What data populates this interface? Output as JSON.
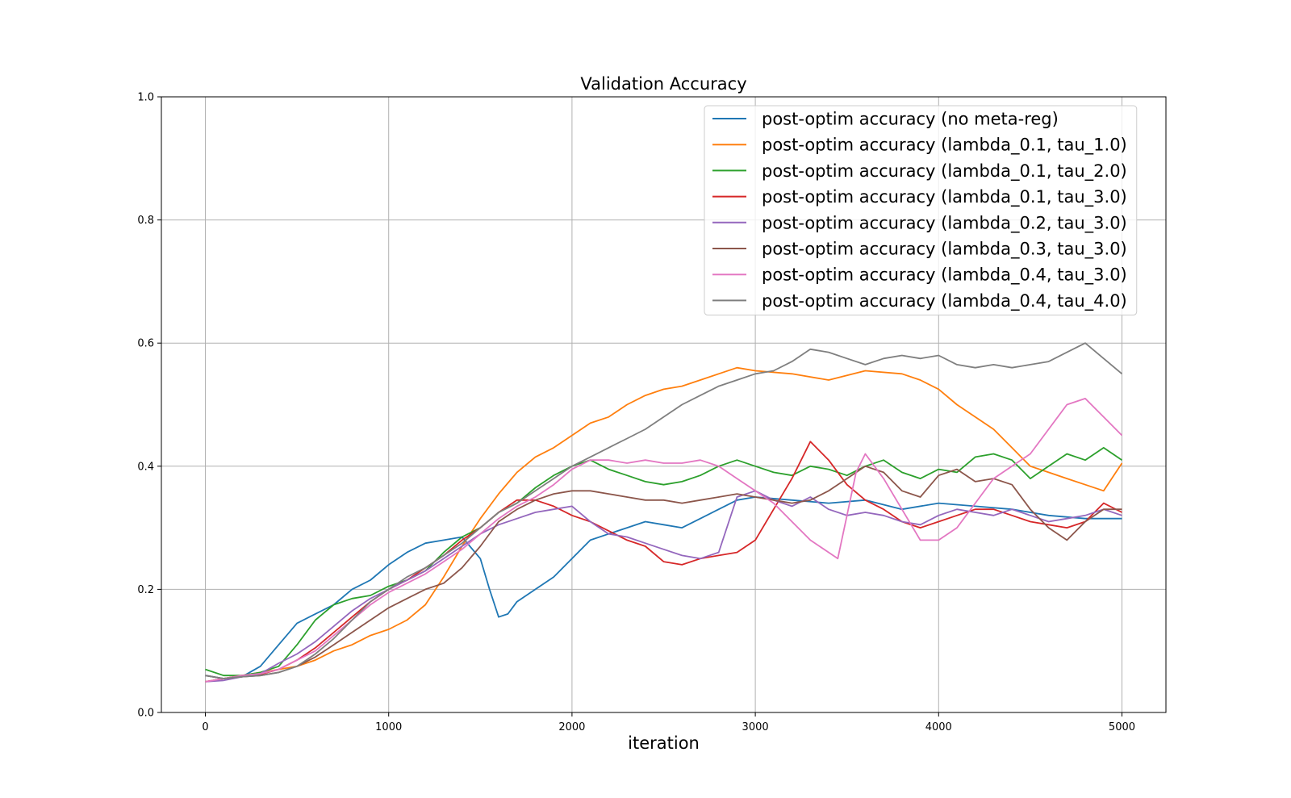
{
  "chart_data": {
    "type": "line",
    "title": "Validation Accuracy",
    "xlabel": "iteration",
    "ylabel": "",
    "xlim": [
      -240,
      5240
    ],
    "ylim": [
      0.0,
      1.0
    ],
    "xticks": [
      "0",
      "1000",
      "2000",
      "3000",
      "4000",
      "5000"
    ],
    "yticks": [
      "0.0",
      "0.2",
      "0.4",
      "0.6",
      "0.8",
      "1.0"
    ],
    "grid": true,
    "legend_position": "upper right",
    "series": [
      {
        "name": "post-optim accuracy (no meta-reg)",
        "color": "#1f77b4",
        "x": [
          0,
          100,
          200,
          300,
          400,
          500,
          600,
          700,
          800,
          900,
          1000,
          1100,
          1200,
          1300,
          1400,
          1500,
          1550,
          1600,
          1650,
          1700,
          1800,
          1900,
          2000,
          2100,
          2200,
          2300,
          2400,
          2500,
          2600,
          2700,
          2800,
          2900,
          3000,
          3200,
          3400,
          3600,
          3800,
          4000,
          4200,
          4400,
          4600,
          4800,
          5000
        ],
        "y": [
          0.06,
          0.055,
          0.058,
          0.075,
          0.11,
          0.145,
          0.16,
          0.175,
          0.2,
          0.215,
          0.24,
          0.26,
          0.275,
          0.28,
          0.285,
          0.25,
          0.2,
          0.155,
          0.16,
          0.18,
          0.2,
          0.22,
          0.25,
          0.28,
          0.29,
          0.3,
          0.31,
          0.305,
          0.3,
          0.315,
          0.33,
          0.345,
          0.35,
          0.345,
          0.34,
          0.345,
          0.33,
          0.34,
          0.335,
          0.33,
          0.32,
          0.315,
          0.315
        ]
      },
      {
        "name": "post-optim accuracy (lambda_0.1, tau_1.0)",
        "color": "#ff7f0e",
        "x": [
          0,
          100,
          200,
          300,
          400,
          500,
          600,
          700,
          800,
          900,
          1000,
          1100,
          1200,
          1300,
          1400,
          1500,
          1600,
          1700,
          1800,
          1900,
          2000,
          2100,
          2200,
          2300,
          2400,
          2500,
          2600,
          2700,
          2800,
          2900,
          3000,
          3200,
          3400,
          3600,
          3800,
          3900,
          4000,
          4100,
          4200,
          4300,
          4400,
          4500,
          4600,
          4700,
          4800,
          4900,
          5000
        ],
        "y": [
          0.05,
          0.055,
          0.06,
          0.065,
          0.07,
          0.075,
          0.085,
          0.1,
          0.11,
          0.125,
          0.135,
          0.15,
          0.175,
          0.22,
          0.27,
          0.315,
          0.355,
          0.39,
          0.415,
          0.43,
          0.45,
          0.47,
          0.48,
          0.5,
          0.515,
          0.525,
          0.53,
          0.54,
          0.55,
          0.56,
          0.555,
          0.55,
          0.54,
          0.555,
          0.55,
          0.54,
          0.525,
          0.5,
          0.48,
          0.46,
          0.43,
          0.4,
          0.39,
          0.38,
          0.37,
          0.36,
          0.405
        ]
      },
      {
        "name": "post-optim accuracy (lambda_0.1, tau_2.0)",
        "color": "#2ca02c",
        "x": [
          0,
          100,
          200,
          300,
          400,
          500,
          600,
          700,
          800,
          900,
          1000,
          1100,
          1200,
          1300,
          1400,
          1500,
          1600,
          1700,
          1800,
          1900,
          2000,
          2100,
          2200,
          2300,
          2400,
          2500,
          2600,
          2700,
          2800,
          2900,
          3000,
          3100,
          3200,
          3300,
          3400,
          3500,
          3600,
          3700,
          3800,
          3900,
          4000,
          4100,
          4200,
          4300,
          4400,
          4500,
          4600,
          4700,
          4800,
          4900,
          5000
        ],
        "y": [
          0.07,
          0.06,
          0.06,
          0.065,
          0.075,
          0.11,
          0.15,
          0.175,
          0.185,
          0.19,
          0.205,
          0.215,
          0.23,
          0.26,
          0.285,
          0.3,
          0.325,
          0.34,
          0.365,
          0.385,
          0.4,
          0.41,
          0.395,
          0.385,
          0.375,
          0.37,
          0.375,
          0.385,
          0.4,
          0.41,
          0.4,
          0.39,
          0.385,
          0.4,
          0.395,
          0.385,
          0.4,
          0.41,
          0.39,
          0.38,
          0.395,
          0.39,
          0.415,
          0.42,
          0.41,
          0.38,
          0.4,
          0.42,
          0.41,
          0.43,
          0.41
        ]
      },
      {
        "name": "post-optim accuracy (lambda_0.1, tau_3.0)",
        "color": "#d62728",
        "x": [
          0,
          100,
          200,
          300,
          400,
          500,
          600,
          700,
          800,
          900,
          1000,
          1100,
          1200,
          1300,
          1400,
          1500,
          1600,
          1700,
          1800,
          1900,
          2000,
          2100,
          2200,
          2300,
          2400,
          2500,
          2600,
          2700,
          2800,
          2900,
          3000,
          3100,
          3200,
          3300,
          3400,
          3500,
          3600,
          3700,
          3800,
          3900,
          4000,
          4100,
          4200,
          4300,
          4400,
          4500,
          4600,
          4700,
          4800,
          4900,
          5000
        ],
        "y": [
          0.05,
          0.055,
          0.06,
          0.062,
          0.07,
          0.085,
          0.105,
          0.13,
          0.155,
          0.18,
          0.2,
          0.215,
          0.235,
          0.255,
          0.28,
          0.3,
          0.325,
          0.345,
          0.345,
          0.335,
          0.32,
          0.31,
          0.295,
          0.28,
          0.27,
          0.245,
          0.24,
          0.25,
          0.255,
          0.26,
          0.28,
          0.33,
          0.38,
          0.44,
          0.41,
          0.37,
          0.345,
          0.33,
          0.31,
          0.3,
          0.31,
          0.32,
          0.33,
          0.33,
          0.32,
          0.31,
          0.305,
          0.3,
          0.31,
          0.34,
          0.325
        ]
      },
      {
        "name": "post-optim accuracy (lambda_0.2, tau_3.0)",
        "color": "#9467bd",
        "x": [
          0,
          100,
          200,
          300,
          400,
          500,
          600,
          700,
          800,
          900,
          1000,
          1100,
          1200,
          1300,
          1400,
          1500,
          1600,
          1700,
          1800,
          1900,
          2000,
          2100,
          2200,
          2300,
          2400,
          2500,
          2600,
          2700,
          2800,
          2900,
          3000,
          3100,
          3200,
          3300,
          3400,
          3500,
          3600,
          3700,
          3800,
          3900,
          4000,
          4100,
          4200,
          4300,
          4400,
          4500,
          4600,
          4700,
          4800,
          4900,
          5000
        ],
        "y": [
          0.05,
          0.052,
          0.058,
          0.063,
          0.08,
          0.095,
          0.115,
          0.14,
          0.165,
          0.185,
          0.2,
          0.215,
          0.23,
          0.25,
          0.27,
          0.29,
          0.305,
          0.315,
          0.325,
          0.33,
          0.335,
          0.31,
          0.29,
          0.285,
          0.275,
          0.265,
          0.255,
          0.25,
          0.26,
          0.35,
          0.36,
          0.345,
          0.335,
          0.35,
          0.33,
          0.32,
          0.325,
          0.32,
          0.31,
          0.305,
          0.32,
          0.33,
          0.325,
          0.32,
          0.33,
          0.32,
          0.31,
          0.315,
          0.32,
          0.33,
          0.32
        ]
      },
      {
        "name": "post-optim accuracy (lambda_0.3, tau_3.0)",
        "color": "#8c564b",
        "x": [
          0,
          100,
          200,
          300,
          400,
          500,
          600,
          700,
          800,
          900,
          1000,
          1100,
          1200,
          1300,
          1400,
          1500,
          1600,
          1700,
          1800,
          1900,
          2000,
          2100,
          2200,
          2300,
          2400,
          2500,
          2600,
          2700,
          2800,
          2900,
          3000,
          3100,
          3200,
          3300,
          3400,
          3500,
          3600,
          3700,
          3800,
          3900,
          4000,
          4100,
          4200,
          4300,
          4400,
          4500,
          4600,
          4700,
          4800,
          4900,
          5000
        ],
        "y": [
          0.06,
          0.055,
          0.058,
          0.06,
          0.065,
          0.075,
          0.09,
          0.11,
          0.13,
          0.15,
          0.17,
          0.185,
          0.2,
          0.21,
          0.235,
          0.27,
          0.31,
          0.33,
          0.345,
          0.355,
          0.36,
          0.36,
          0.355,
          0.35,
          0.345,
          0.345,
          0.34,
          0.345,
          0.35,
          0.355,
          0.35,
          0.345,
          0.34,
          0.345,
          0.36,
          0.38,
          0.4,
          0.39,
          0.36,
          0.35,
          0.385,
          0.395,
          0.375,
          0.38,
          0.37,
          0.33,
          0.3,
          0.28,
          0.31,
          0.33,
          0.33
        ]
      },
      {
        "name": "post-optim accuracy (lambda_0.4, tau_3.0)",
        "color": "#e377c2",
        "x": [
          0,
          100,
          200,
          300,
          400,
          500,
          600,
          700,
          800,
          900,
          1000,
          1100,
          1200,
          1300,
          1400,
          1500,
          1600,
          1700,
          1800,
          1900,
          2000,
          2100,
          2200,
          2300,
          2400,
          2500,
          2600,
          2700,
          2800,
          2900,
          3000,
          3100,
          3200,
          3300,
          3400,
          3450,
          3500,
          3550,
          3600,
          3700,
          3800,
          3900,
          4000,
          4100,
          4200,
          4300,
          4400,
          4500,
          4600,
          4700,
          4800,
          4900,
          5000
        ],
        "y": [
          0.05,
          0.055,
          0.06,
          0.063,
          0.07,
          0.085,
          0.1,
          0.125,
          0.15,
          0.175,
          0.195,
          0.21,
          0.225,
          0.245,
          0.265,
          0.29,
          0.315,
          0.335,
          0.35,
          0.37,
          0.395,
          0.41,
          0.41,
          0.405,
          0.41,
          0.405,
          0.405,
          0.41,
          0.4,
          0.38,
          0.36,
          0.34,
          0.31,
          0.28,
          0.26,
          0.25,
          0.32,
          0.39,
          0.42,
          0.38,
          0.33,
          0.28,
          0.28,
          0.3,
          0.34,
          0.38,
          0.4,
          0.42,
          0.46,
          0.5,
          0.51,
          0.48,
          0.45
        ]
      },
      {
        "name": "post-optim accuracy (lambda_0.4, tau_4.0)",
        "color": "#7f7f7f",
        "x": [
          0,
          100,
          200,
          300,
          400,
          500,
          600,
          700,
          800,
          900,
          1000,
          1100,
          1200,
          1300,
          1400,
          1500,
          1600,
          1700,
          1800,
          1900,
          2000,
          2100,
          2200,
          2300,
          2400,
          2500,
          2600,
          2700,
          2800,
          2900,
          3000,
          3100,
          3200,
          3300,
          3400,
          3500,
          3600,
          3700,
          3800,
          3900,
          4000,
          4100,
          4200,
          4300,
          4400,
          4500,
          4600,
          4700,
          4800,
          4900,
          5000
        ],
        "y": [
          0.06,
          0.055,
          0.058,
          0.06,
          0.065,
          0.075,
          0.095,
          0.12,
          0.15,
          0.18,
          0.2,
          0.22,
          0.235,
          0.255,
          0.275,
          0.3,
          0.325,
          0.34,
          0.36,
          0.38,
          0.4,
          0.415,
          0.43,
          0.445,
          0.46,
          0.48,
          0.5,
          0.515,
          0.53,
          0.54,
          0.55,
          0.555,
          0.57,
          0.59,
          0.585,
          0.575,
          0.565,
          0.575,
          0.58,
          0.575,
          0.58,
          0.565,
          0.56,
          0.565,
          0.56,
          0.565,
          0.57,
          0.585,
          0.6,
          0.575,
          0.55
        ]
      }
    ]
  }
}
